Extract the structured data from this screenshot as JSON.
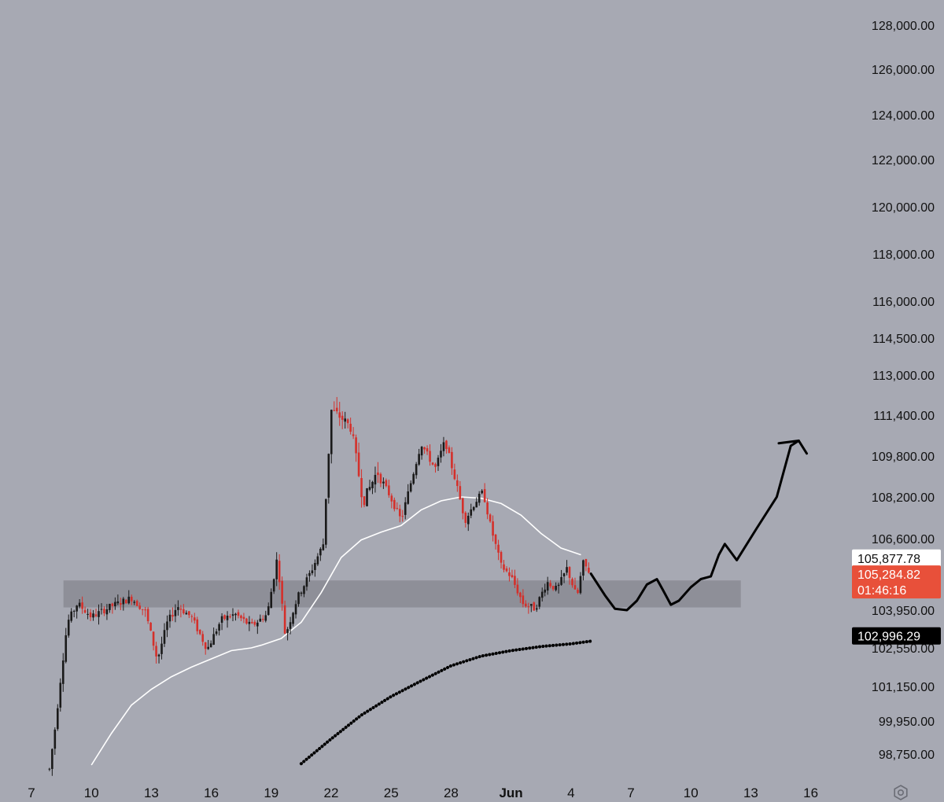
{
  "chart_data": {
    "type": "candlestick",
    "y_ticks": [
      "128,000.00",
      "126,000.00",
      "124,000.00",
      "122,000.00",
      "120,000.00",
      "118,000.00",
      "116,000.00",
      "114,500.00",
      "113,000.00",
      "111,400.00",
      "109,800.00",
      "108,200.00",
      "106,600.00",
      "103,950.00",
      "102,550.00",
      "101,150.00",
      "99,950.00",
      "98,750.00"
    ],
    "x_ticks": [
      "7",
      "10",
      "13",
      "16",
      "19",
      "22",
      "25",
      "28",
      "Jun",
      "4",
      "7",
      "10",
      "13",
      "16"
    ],
    "x_tick_bold": "Jun",
    "price_tags": [
      {
        "label": "105,877.78",
        "value": 105877.78,
        "bg": "#ffffff",
        "fg": "#111111",
        "countdown": ""
      },
      {
        "label": "105,284.82",
        "value": 105284.82,
        "bg": "#e8503a",
        "fg": "#ffffff",
        "countdown": "01:46:16"
      },
      {
        "label": "102,996.29",
        "value": 102996.29,
        "bg": "#000000",
        "fg": "#ffffff",
        "countdown": ""
      }
    ],
    "zone": {
      "from_day": 8.6,
      "to_day": 42.5,
      "low": 104050,
      "high": 105050
    },
    "x_range_days": [
      7,
      46
    ],
    "colors": {
      "background": "#a7a9b3",
      "up": "#1a1a1a",
      "down": "#d4302b",
      "ema_fast": "#ffffff",
      "ema_slow": "#000000",
      "zone": "#8e8f98",
      "projection": "#000000"
    },
    "candles_summary": {
      "start": 98200,
      "high": 111950,
      "low": 100900,
      "last": 105284.82
    },
    "ema_fast": [
      [
        10.0,
        98350
      ],
      [
        11.0,
        99500
      ],
      [
        12.0,
        100500
      ],
      [
        13.0,
        101050
      ],
      [
        14.0,
        101500
      ],
      [
        15.0,
        101850
      ],
      [
        16.0,
        102150
      ],
      [
        17.0,
        102450
      ],
      [
        18.0,
        102550
      ],
      [
        18.5,
        102650
      ],
      [
        19.5,
        102900
      ],
      [
        20.5,
        103500
      ],
      [
        21.5,
        104600
      ],
      [
        22.5,
        105900
      ],
      [
        23.5,
        106550
      ],
      [
        24.5,
        106850
      ],
      [
        25.5,
        107100
      ],
      [
        26.5,
        107700
      ],
      [
        27.5,
        108050
      ],
      [
        28.5,
        108200
      ],
      [
        29.5,
        108150
      ],
      [
        30.5,
        107950
      ],
      [
        31.5,
        107500
      ],
      [
        32.5,
        106800
      ],
      [
        33.5,
        106250
      ],
      [
        34.5,
        106000
      ]
    ],
    "ema_slow": [
      [
        20.5,
        98400
      ],
      [
        22.0,
        99300
      ],
      [
        23.5,
        100150
      ],
      [
        25.0,
        100800
      ],
      [
        26.5,
        101350
      ],
      [
        28.0,
        101900
      ],
      [
        29.5,
        102250
      ],
      [
        31.0,
        102450
      ],
      [
        32.5,
        102600
      ],
      [
        34.0,
        102700
      ],
      [
        35.0,
        102800
      ]
    ],
    "projection": [
      [
        35.0,
        105300
      ],
      [
        35.7,
        104500
      ],
      [
        36.2,
        104000
      ],
      [
        36.8,
        103950
      ],
      [
        37.3,
        104300
      ],
      [
        37.8,
        104900
      ],
      [
        38.3,
        105100
      ],
      [
        38.6,
        104700
      ],
      [
        39.0,
        104150
      ],
      [
        39.4,
        104300
      ],
      [
        40.0,
        104800
      ],
      [
        40.5,
        105100
      ],
      [
        41.0,
        105200
      ],
      [
        41.4,
        106000
      ],
      [
        41.7,
        106400
      ],
      [
        42.0,
        106100
      ],
      [
        42.3,
        105800
      ],
      [
        43.3,
        107000
      ],
      [
        44.3,
        108200
      ],
      [
        45.0,
        110200
      ],
      [
        45.4,
        110400
      ]
    ],
    "arrowhead": [
      [
        44.4,
        110300
      ],
      [
        45.4,
        110400
      ],
      [
        45.8,
        109900
      ]
    ]
  }
}
